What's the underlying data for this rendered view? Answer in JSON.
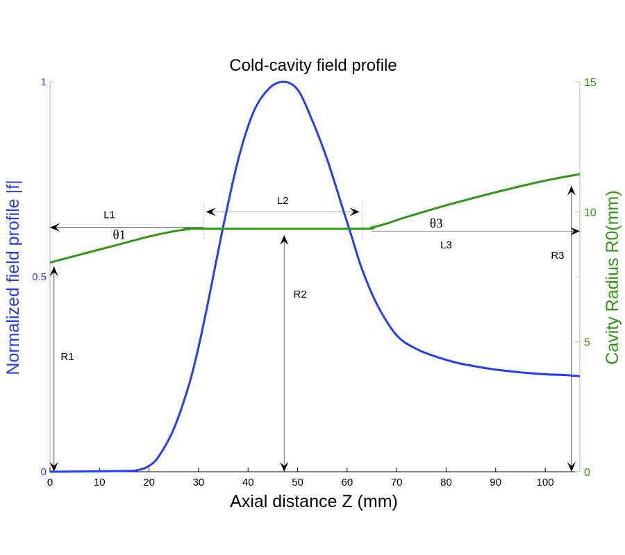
{
  "chart_data": {
    "type": "line",
    "title": "Cold-cavity field profile",
    "xlabel": "Axial distance Z (mm)",
    "ylabel_left": "Normalized field profile |f|",
    "ylabel_right": "Cavity Radius R0(mm)",
    "xlim": [
      0,
      107
    ],
    "ylim_left": [
      0,
      1
    ],
    "ylim_right": [
      0,
      15
    ],
    "x_ticks": [
      "0",
      "10",
      "20",
      "30",
      "40",
      "50",
      "60",
      "70",
      "80",
      "90",
      "100"
    ],
    "y_ticks_left": [
      "0",
      "0.5",
      "1"
    ],
    "y_ticks_right": [
      "0",
      "5",
      "10",
      "15"
    ],
    "grid": false,
    "colors": {
      "field": "#1f3cff",
      "radius": "#2a9a0e",
      "left_axis": "#1f3cff",
      "right_axis": "#2a9a0e"
    },
    "series": [
      {
        "name": "Normalized field profile |f|",
        "axis": "left",
        "x": [
          0,
          15,
          18,
          20,
          22,
          25,
          28,
          30,
          32,
          35,
          38,
          41,
          44,
          47,
          50,
          53,
          56,
          59,
          61,
          63,
          66,
          70,
          74,
          78,
          82,
          86,
          90,
          95,
          100,
          104,
          107
        ],
        "y": [
          0,
          0.002,
          0.005,
          0.015,
          0.04,
          0.11,
          0.22,
          0.32,
          0.44,
          0.63,
          0.8,
          0.92,
          0.98,
          1.0,
          0.98,
          0.9,
          0.8,
          0.68,
          0.6,
          0.52,
          0.43,
          0.35,
          0.315,
          0.295,
          0.28,
          0.27,
          0.262,
          0.255,
          0.25,
          0.248,
          0.245
        ]
      },
      {
        "name": "Cavity Radius R0(mm)",
        "axis": "right",
        "x": [
          0,
          5,
          10,
          15,
          20,
          25,
          28,
          30,
          62,
          65,
          68,
          72,
          80,
          90,
          100,
          107
        ],
        "y": [
          8.05,
          8.3,
          8.55,
          8.8,
          9.05,
          9.25,
          9.33,
          9.35,
          9.35,
          9.4,
          9.55,
          9.8,
          10.25,
          10.75,
          11.2,
          11.45
        ]
      }
    ],
    "annotations": [
      {
        "label": "L1",
        "serif": false,
        "x": 12,
        "r": 9.75
      },
      {
        "label": "θ1",
        "serif": true,
        "x": 14,
        "r": 8.95
      },
      {
        "label": "L2",
        "serif": false,
        "x": 47,
        "r": 10.3
      },
      {
        "label": "θ3",
        "serif": true,
        "x": 78,
        "r": 9.4
      },
      {
        "label": "L3",
        "serif": false,
        "x": 80,
        "r": 8.6
      },
      {
        "label": "R1",
        "serif": false,
        "x": 3.5,
        "r": 4.3
      },
      {
        "label": "R2",
        "serif": false,
        "x": 50.5,
        "r": 6.7
      },
      {
        "label": "R3",
        "serif": false,
        "x": 102.5,
        "r": 8.2
      }
    ],
    "arrows": [
      {
        "name": "L1",
        "x1": 31,
        "r1": 9.4,
        "x2": 0,
        "r2": 9.4,
        "heads": "end",
        "color": "#555555"
      },
      {
        "name": "L2",
        "x1": 31.5,
        "r1": 10.0,
        "x2": 62.5,
        "r2": 10.0,
        "heads": "both",
        "color": "#aaaaaa"
      },
      {
        "name": "L3",
        "x1": 65,
        "r1": 9.25,
        "x2": 107,
        "r2": 9.25,
        "heads": "end",
        "color": "#aaaaaa"
      },
      {
        "name": "R1",
        "x1": 0.8,
        "r1": 0,
        "x2": 0.8,
        "r2": 7.9,
        "heads": "both",
        "color": "#666666"
      },
      {
        "name": "R2",
        "x1": 47.3,
        "r1": 0,
        "x2": 47.3,
        "r2": 9.1,
        "heads": "both",
        "color": "#888888"
      },
      {
        "name": "R3",
        "x1": 105.3,
        "r1": 0,
        "x2": 105.3,
        "r2": 11.0,
        "heads": "both",
        "color": "#666666"
      }
    ],
    "dotted_markers": [
      31,
      63
    ]
  }
}
